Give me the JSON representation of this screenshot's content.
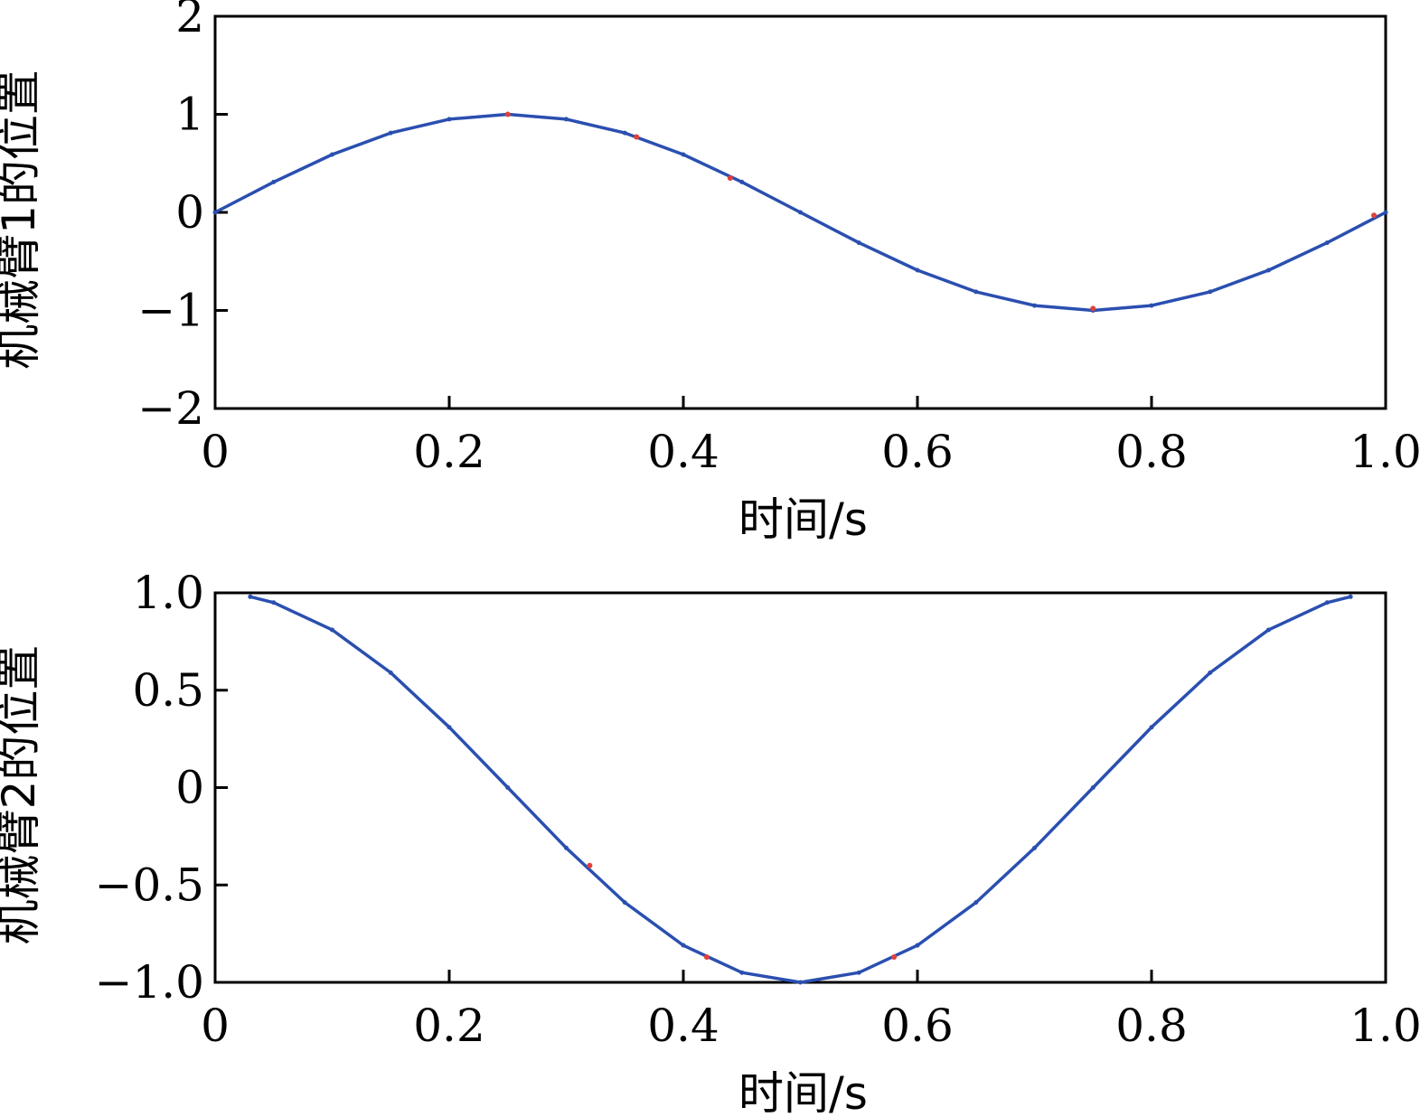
{
  "chart_data": [
    {
      "type": "line",
      "xlabel": "时间/s",
      "ylabel": "机械臂1的位置",
      "xlim": [
        0,
        1.0
      ],
      "ylim": [
        -2,
        2
      ],
      "xticks": [
        0,
        0.2,
        0.4,
        0.6,
        0.8,
        1.0
      ],
      "xtick_labels": [
        "0",
        "0.2",
        "0.4",
        "0.6",
        "0.8",
        "1.0"
      ],
      "yticks": [
        2,
        1,
        0,
        -1,
        -2
      ],
      "ytick_labels": [
        "2",
        "1",
        "0",
        "−1",
        "−2"
      ],
      "grid": false,
      "series": [
        {
          "color": "#2a4fb0",
          "x": [
            0,
            0.05,
            0.1,
            0.15,
            0.2,
            0.25,
            0.3,
            0.35,
            0.4,
            0.45,
            0.5,
            0.55,
            0.6,
            0.65,
            0.7,
            0.75,
            0.8,
            0.85,
            0.9,
            0.95,
            1.0
          ],
          "y": [
            0,
            0.31,
            0.59,
            0.81,
            0.95,
            1.0,
            0.95,
            0.81,
            0.59,
            0.31,
            0,
            -0.31,
            -0.59,
            -0.81,
            -0.95,
            -1.0,
            -0.95,
            -0.81,
            -0.59,
            -0.31,
            0
          ]
        },
        {
          "color": "#e0403a",
          "x": [
            0.25,
            0.36,
            0.44,
            0.75,
            0.99
          ],
          "y": [
            1.0,
            0.77,
            0.35,
            -0.98,
            -0.03
          ]
        }
      ]
    },
    {
      "type": "line",
      "xlabel": "时间/s",
      "ylabel": "机械臂2的位置",
      "xlim": [
        0,
        1.0
      ],
      "ylim": [
        -1.0,
        1.0
      ],
      "xticks": [
        0,
        0.2,
        0.4,
        0.6,
        0.8,
        1.0
      ],
      "xtick_labels": [
        "0",
        "0.2",
        "0.4",
        "0.6",
        "0.8",
        "1.0"
      ],
      "yticks": [
        1.0,
        0.5,
        0,
        -0.5,
        -1.0
      ],
      "ytick_labels": [
        "1.0",
        "0.5",
        "0",
        "−0.5",
        "−1.0"
      ],
      "grid": false,
      "series": [
        {
          "color": "#2a4fb0",
          "x": [
            0.03,
            0.05,
            0.1,
            0.15,
            0.2,
            0.25,
            0.3,
            0.35,
            0.4,
            0.45,
            0.5,
            0.55,
            0.6,
            0.65,
            0.7,
            0.75,
            0.8,
            0.85,
            0.9,
            0.95,
            0.97
          ],
          "y": [
            0.98,
            0.95,
            0.81,
            0.59,
            0.31,
            0,
            -0.31,
            -0.59,
            -0.81,
            -0.95,
            -1.0,
            -0.95,
            -0.81,
            -0.59,
            -0.31,
            0,
            0.31,
            0.59,
            0.81,
            0.95,
            0.98
          ]
        },
        {
          "color": "#e0403a",
          "x": [
            0.32,
            0.42,
            0.58
          ],
          "y": [
            -0.4,
            -0.87,
            -0.87
          ]
        }
      ]
    }
  ]
}
